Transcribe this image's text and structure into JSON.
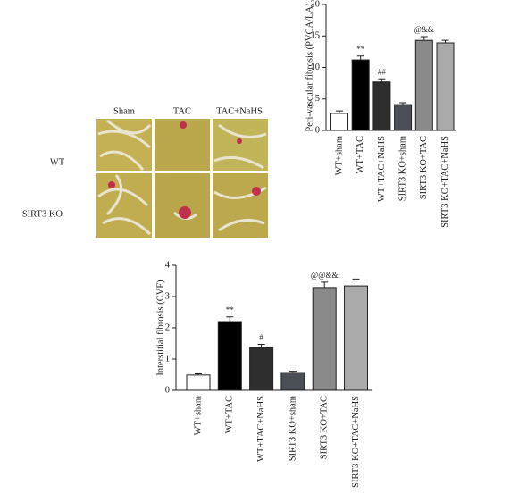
{
  "micrograph": {
    "columns": [
      "Sham",
      "TAC",
      "TAC+NaHS"
    ],
    "rows": [
      "WT",
      "SIRT3 KO"
    ]
  },
  "chart_data": [
    {
      "type": "bar",
      "ylabel": "Peri-vascular fibrosis (PVCA/LA)",
      "categories": [
        "WT+sham",
        "WT+TAC",
        "WT+TAC+NaHS",
        "SIRT3 KO+sham",
        "SIRT3 KO+TAC",
        "SIRT3 KO+TAC+NaHS"
      ],
      "values": [
        2.7,
        11.2,
        7.7,
        4.1,
        14.3,
        13.9
      ],
      "errors": [
        0.4,
        0.6,
        0.5,
        0.3,
        0.6,
        0.4
      ],
      "annotations": [
        null,
        "**",
        "##",
        null,
        "@&&",
        null
      ],
      "colors": [
        "#ffffff",
        "#000000",
        "#2e2e2e",
        "#4a4f55",
        "#8a8a8a",
        "#aaaaaa"
      ],
      "ylim": [
        0,
        20
      ],
      "yticks": [
        0,
        5,
        10,
        15,
        20
      ]
    },
    {
      "type": "bar",
      "ylabel": "Interstitial fibrosis (CVF)",
      "categories": [
        "WT+sham",
        "WT+TAC",
        "WT+TAC+NaHS",
        "SIRT3 KO+sham",
        "SIRT3 KO+TAC",
        "SIRT3 KO+TAC+NaHS"
      ],
      "values": [
        0.49,
        2.2,
        1.37,
        0.57,
        3.29,
        3.34
      ],
      "errors": [
        0.04,
        0.15,
        0.1,
        0.04,
        0.17,
        0.22
      ],
      "annotations": [
        null,
        "**",
        "#",
        null,
        "@@&&",
        null
      ],
      "colors": [
        "#ffffff",
        "#000000",
        "#2e2e2e",
        "#4a4f55",
        "#8a8a8a",
        "#aaaaaa"
      ],
      "ylim": [
        0,
        4
      ],
      "yticks": [
        0,
        1,
        2,
        3,
        4
      ]
    }
  ]
}
